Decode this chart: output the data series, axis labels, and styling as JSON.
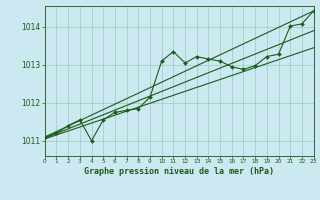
{
  "xlabel": "Graphe pression niveau de la mer (hPa)",
  "bg_color": "#cce8f0",
  "grid_color": "#99ccbb",
  "line_color": "#1a5c1a",
  "spine_color": "#336633",
  "x_min": 0,
  "x_max": 23,
  "y_min": 1010.6,
  "y_max": 1014.55,
  "yticks": [
    1011,
    1012,
    1013,
    1014
  ],
  "xticks": [
    0,
    1,
    2,
    3,
    4,
    5,
    6,
    7,
    8,
    9,
    10,
    11,
    12,
    13,
    14,
    15,
    16,
    17,
    18,
    19,
    20,
    21,
    22,
    23
  ],
  "actual_x": [
    0,
    1,
    2,
    3,
    4,
    5,
    6,
    7,
    8,
    9,
    10,
    11,
    12,
    13,
    14,
    15,
    16,
    17,
    18,
    19,
    20,
    21,
    22,
    23
  ],
  "actual_y": [
    1011.1,
    1011.2,
    1011.4,
    1011.55,
    1011.0,
    1011.55,
    1011.75,
    1011.8,
    1011.85,
    1012.15,
    1013.1,
    1013.35,
    1013.05,
    1013.22,
    1013.15,
    1013.1,
    1012.95,
    1012.88,
    1012.98,
    1013.22,
    1013.28,
    1014.02,
    1014.08,
    1014.42
  ],
  "trend1_x": [
    0,
    23
  ],
  "trend1_y": [
    1011.05,
    1013.45
  ],
  "trend2_x": [
    0,
    23
  ],
  "trend2_y": [
    1011.1,
    1014.42
  ],
  "trend3_x": [
    0,
    23
  ],
  "trend3_y": [
    1011.07,
    1013.9
  ]
}
